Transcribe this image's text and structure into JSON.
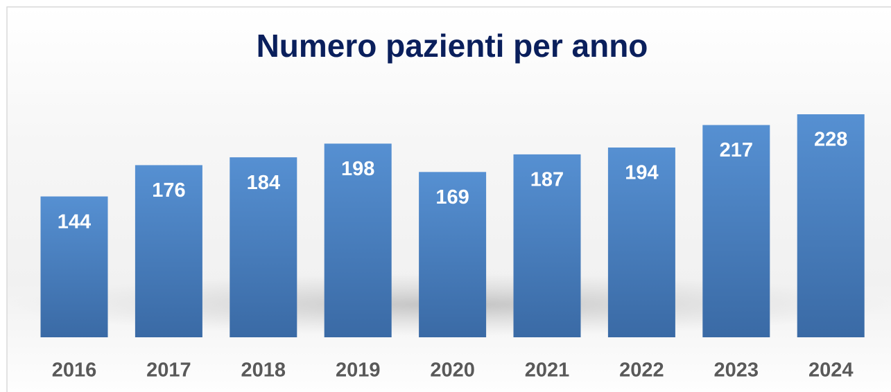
{
  "chart_data": {
    "type": "bar",
    "title": "Numero pazienti per anno",
    "categories": [
      "2016",
      "2017",
      "2018",
      "2019",
      "2020",
      "2021",
      "2022",
      "2023",
      "2024"
    ],
    "values": [
      144,
      176,
      184,
      198,
      169,
      187,
      194,
      217,
      228
    ],
    "color": "#4a7fc0"
  }
}
